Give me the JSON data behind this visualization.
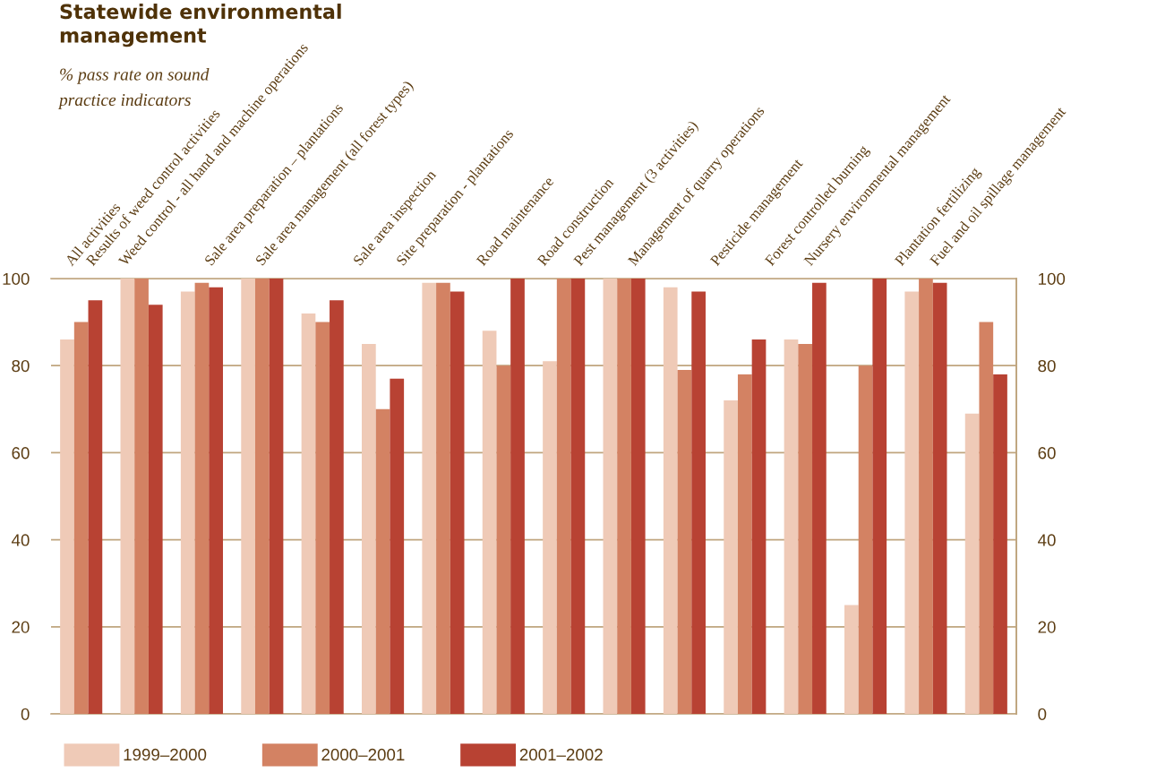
{
  "chart_data": {
    "type": "bar",
    "title": "Statewide environmental\nmanagement",
    "subtitle": "% pass rate on sound\npractice indicators",
    "categories": [
      "All activities",
      "Results of weed control activities",
      "Weed control - all hand and machine operations",
      "Sale area preparation – plantations",
      "Sale area management (all forest types)",
      "Sale area inspection",
      "Site preparation - plantations",
      "Road maintenance",
      "Road construction",
      "Pest management (3 activities)",
      "Management of quarry operations",
      "Pesticide management",
      "Forest controlled burning",
      "Nursery environmental management",
      "Plantation fertilizing",
      "Fuel and oil spillage management"
    ],
    "series": [
      {
        "name": "1999–2000",
        "color": "#efcab7",
        "values": [
          86,
          100,
          97,
          100,
          92,
          85,
          99,
          88,
          81,
          100,
          98,
          72,
          86,
          25,
          97,
          69
        ]
      },
      {
        "name": "2000–2001",
        "color": "#d38263",
        "values": [
          90,
          100,
          99,
          100,
          90,
          70,
          99,
          80,
          100,
          100,
          79,
          78,
          85,
          80,
          100,
          90
        ]
      },
      {
        "name": "2001–2002",
        "color": "#b84233",
        "values": [
          95,
          94,
          98,
          100,
          95,
          77,
          97,
          100,
          100,
          100,
          97,
          86,
          99,
          100,
          99,
          78
        ]
      }
    ],
    "ylim": [
      0,
      100
    ],
    "yticks": [
      0,
      20,
      40,
      60,
      80,
      100
    ],
    "y2lim": [
      0,
      100
    ],
    "y2ticks": [
      0,
      20,
      40,
      60,
      80,
      100
    ],
    "grid": "y",
    "legend": "bottom left"
  }
}
